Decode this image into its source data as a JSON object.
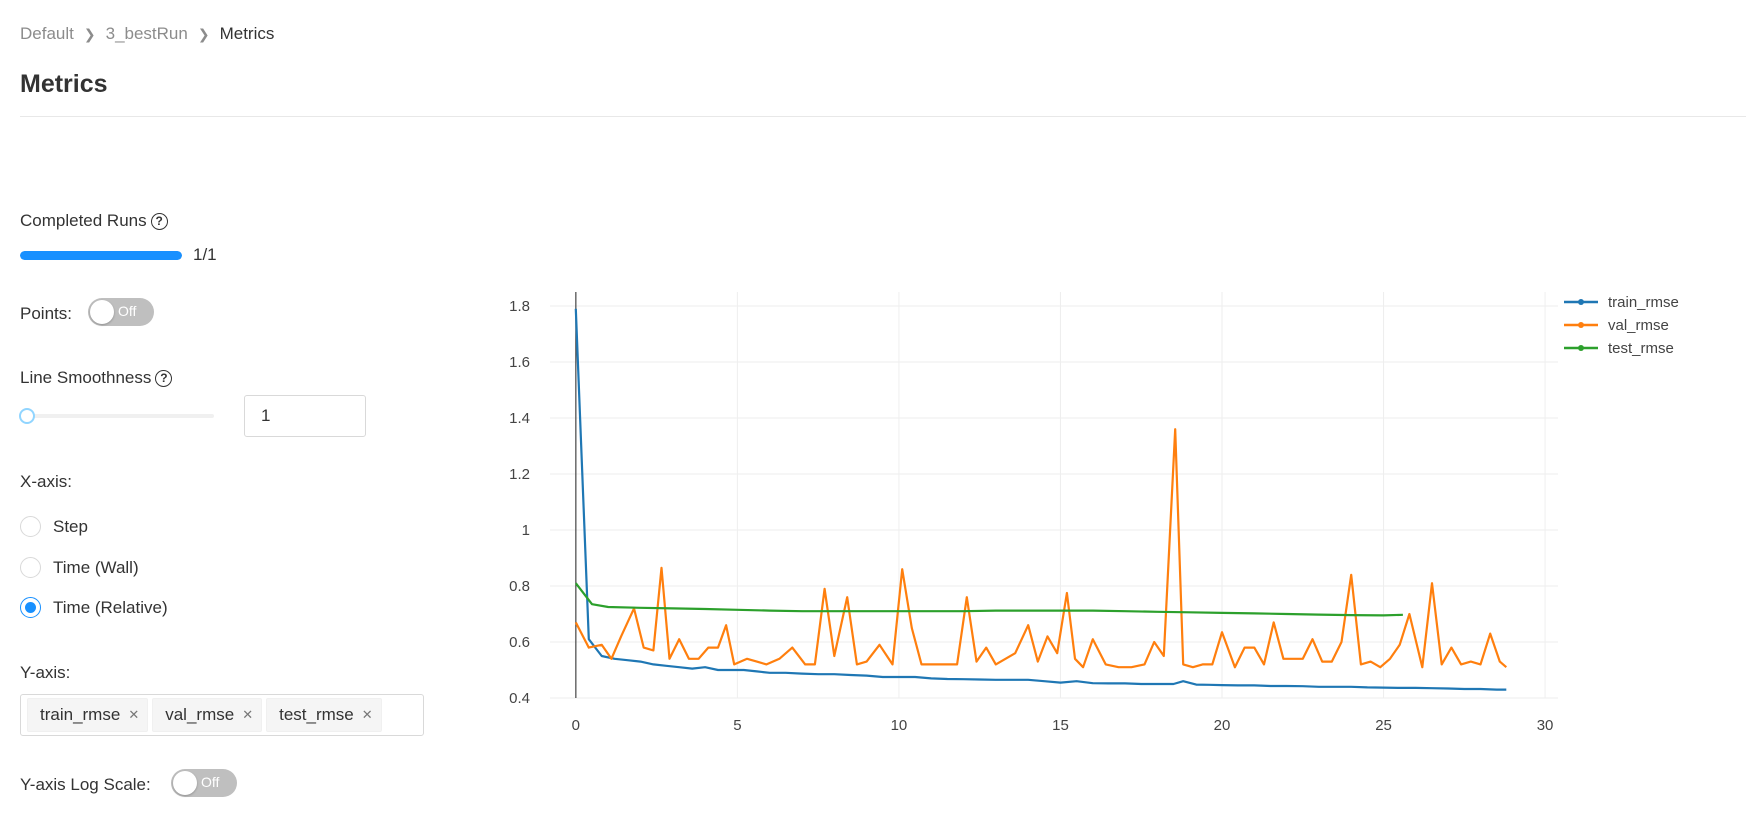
{
  "breadcrumb": {
    "items": [
      "Default",
      "3_bestRun"
    ],
    "current": "Metrics"
  },
  "page_title": "Metrics",
  "sidebar": {
    "completed_runs_label": "Completed Runs",
    "completed_runs_value": "1/1",
    "completed_runs_fraction": 1.0,
    "points_label": "Points:",
    "points_toggle": "Off",
    "line_smoothness_label": "Line Smoothness",
    "line_smoothness_value": "1",
    "xaxis_label": "X-axis:",
    "xaxis_options": [
      "Step",
      "Time (Wall)",
      "Time (Relative)"
    ],
    "xaxis_selected": "Time (Relative)",
    "yaxis_label": "Y-axis:",
    "yaxis_tags": [
      "train_rmse",
      "val_rmse",
      "test_rmse"
    ],
    "ylog_label": "Y-axis Log Scale:",
    "ylog_toggle": "Off"
  },
  "colors": {
    "accent": "#1890ff",
    "train": "#1f77b4",
    "val": "#ff7f0e",
    "test": "#2ca02c"
  },
  "chart_data": {
    "type": "line",
    "xlim": [
      -0.8,
      30.4
    ],
    "ylim": [
      0.4,
      1.85
    ],
    "xticks": [
      0,
      5,
      10,
      15,
      20,
      25,
      30
    ],
    "yticks": [
      0.4,
      0.6,
      0.8,
      1,
      1.2,
      1.4,
      1.6,
      1.8
    ],
    "grid": true,
    "legend_position": "top-right",
    "series": [
      {
        "name": "train_rmse",
        "color": "#1f77b4",
        "x": [
          0,
          0.4,
          0.8,
          1.2,
          1.6,
          2.0,
          2.4,
          2.8,
          3.2,
          3.6,
          4.0,
          4.4,
          4.8,
          5.2,
          5.6,
          6.0,
          6.5,
          7.0,
          7.5,
          8.0,
          8.5,
          9.0,
          9.5,
          10.0,
          10.5,
          11.0,
          11.5,
          12.0,
          12.5,
          13.0,
          13.5,
          14.0,
          14.5,
          15.0,
          15.5,
          16.0,
          16.5,
          17.0,
          17.5,
          18.0,
          18.5,
          18.8,
          19.2,
          19.6,
          20.0,
          20.5,
          21.0,
          21.5,
          22.0,
          22.5,
          23.0,
          23.5,
          24.0,
          24.5,
          25.0,
          25.5,
          26.0,
          26.5,
          27.0,
          27.5,
          28.0,
          28.5,
          28.8
        ],
        "y": [
          1.79,
          0.61,
          0.55,
          0.54,
          0.535,
          0.53,
          0.52,
          0.515,
          0.51,
          0.505,
          0.51,
          0.5,
          0.5,
          0.5,
          0.495,
          0.49,
          0.49,
          0.487,
          0.485,
          0.485,
          0.482,
          0.48,
          0.475,
          0.475,
          0.475,
          0.47,
          0.468,
          0.467,
          0.466,
          0.465,
          0.465,
          0.465,
          0.46,
          0.455,
          0.46,
          0.453,
          0.452,
          0.452,
          0.45,
          0.45,
          0.45,
          0.46,
          0.448,
          0.447,
          0.446,
          0.445,
          0.445,
          0.443,
          0.443,
          0.442,
          0.44,
          0.44,
          0.44,
          0.438,
          0.437,
          0.436,
          0.436,
          0.435,
          0.434,
          0.432,
          0.432,
          0.43,
          0.43
        ]
      },
      {
        "name": "val_rmse",
        "color": "#ff7f0e",
        "x": [
          0,
          0.4,
          0.8,
          1.1,
          1.4,
          1.8,
          2.1,
          2.4,
          2.65,
          2.9,
          3.2,
          3.5,
          3.8,
          4.1,
          4.4,
          4.65,
          4.9,
          5.3,
          5.6,
          5.9,
          6.3,
          6.7,
          7.1,
          7.4,
          7.7,
          8.0,
          8.4,
          8.7,
          9.0,
          9.4,
          9.8,
          10.1,
          10.4,
          10.7,
          11.0,
          11.4,
          11.8,
          12.1,
          12.4,
          12.7,
          13.0,
          13.3,
          13.6,
          14.0,
          14.3,
          14.6,
          14.9,
          15.2,
          15.45,
          15.7,
          16.0,
          16.4,
          16.8,
          17.2,
          17.6,
          17.9,
          18.2,
          18.55,
          18.8,
          19.1,
          19.4,
          19.7,
          20.0,
          20.4,
          20.7,
          21.0,
          21.3,
          21.6,
          21.9,
          22.2,
          22.5,
          22.8,
          23.1,
          23.4,
          23.7,
          24.0,
          24.3,
          24.6,
          24.9,
          25.2,
          25.5,
          25.8,
          26.2,
          26.5,
          26.8,
          27.1,
          27.4,
          27.7,
          28.0,
          28.3,
          28.6,
          28.8
        ],
        "y": [
          0.67,
          0.58,
          0.59,
          0.54,
          0.62,
          0.72,
          0.58,
          0.57,
          0.865,
          0.54,
          0.61,
          0.54,
          0.54,
          0.58,
          0.58,
          0.66,
          0.52,
          0.54,
          0.53,
          0.52,
          0.54,
          0.58,
          0.52,
          0.52,
          0.79,
          0.55,
          0.76,
          0.52,
          0.53,
          0.59,
          0.52,
          0.86,
          0.65,
          0.52,
          0.52,
          0.52,
          0.52,
          0.76,
          0.53,
          0.58,
          0.52,
          0.54,
          0.56,
          0.66,
          0.53,
          0.62,
          0.56,
          0.775,
          0.54,
          0.51,
          0.61,
          0.52,
          0.51,
          0.51,
          0.52,
          0.6,
          0.55,
          1.36,
          0.52,
          0.51,
          0.52,
          0.52,
          0.635,
          0.51,
          0.58,
          0.58,
          0.52,
          0.67,
          0.54,
          0.54,
          0.54,
          0.61,
          0.53,
          0.53,
          0.6,
          0.84,
          0.52,
          0.53,
          0.51,
          0.54,
          0.59,
          0.7,
          0.51,
          0.81,
          0.52,
          0.58,
          0.52,
          0.53,
          0.52,
          0.63,
          0.53,
          0.51
        ]
      },
      {
        "name": "test_rmse",
        "color": "#2ca02c",
        "x": [
          0,
          0.5,
          1,
          2,
          3,
          4,
          5,
          6,
          7,
          8,
          9,
          10,
          11,
          12,
          13,
          14,
          15,
          16,
          17,
          18,
          19,
          20,
          21,
          22,
          23,
          24,
          25,
          25.6
        ],
        "y": [
          0.81,
          0.735,
          0.725,
          0.722,
          0.72,
          0.718,
          0.715,
          0.712,
          0.71,
          0.71,
          0.71,
          0.71,
          0.71,
          0.71,
          0.712,
          0.712,
          0.712,
          0.712,
          0.71,
          0.708,
          0.706,
          0.704,
          0.702,
          0.7,
          0.698,
          0.696,
          0.695,
          0.697
        ]
      }
    ]
  }
}
